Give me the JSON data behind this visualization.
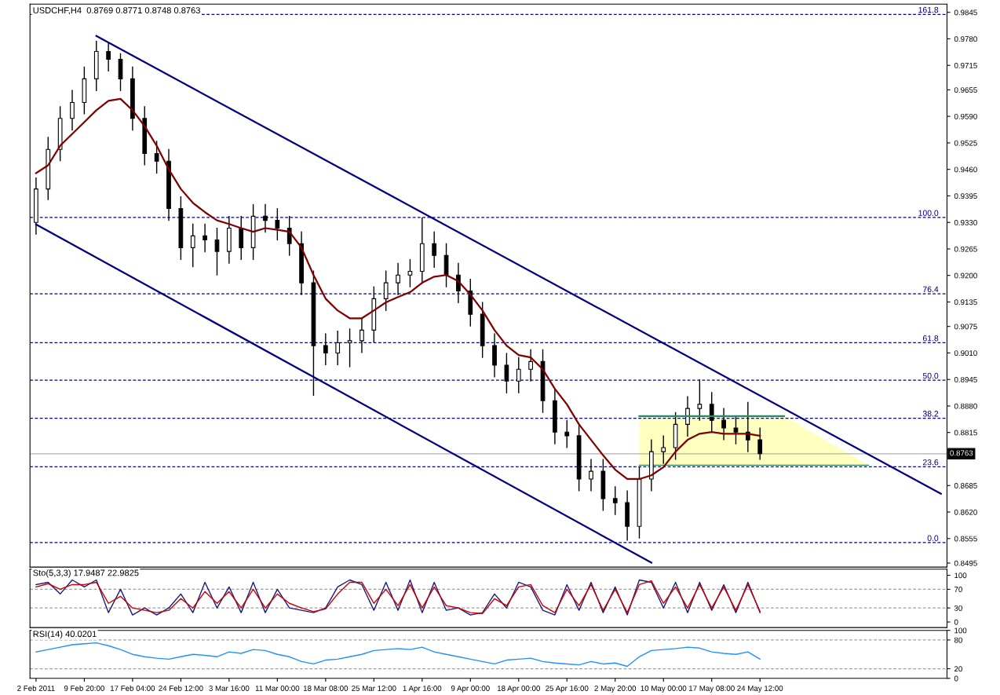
{
  "chart_data": [
    {
      "type": "candlestick",
      "title": "USDCHF,H4  0.8769 0.8771 0.8748 0.8763",
      "color": "#000000",
      "tick_labels": "y",
      "categories": [
        null,
        null,
        null,
        null,
        null,
        null,
        null,
        null,
        null,
        null,
        null,
        null,
        null,
        null,
        null,
        null,
        null,
        null,
        null,
        null,
        null,
        null,
        null,
        null,
        null,
        null,
        null,
        null,
        null,
        null,
        null,
        null,
        null,
        null,
        null,
        null,
        null,
        null,
        null,
        null,
        null,
        null,
        null,
        null,
        null,
        null,
        null,
        null,
        null,
        null,
        null,
        null,
        null,
        null,
        null,
        null,
        null,
        null,
        null,
        null,
        null,
        null,
        null,
        null,
        null,
        null,
        null,
        null,
        null,
        null,
        null,
        null,
        null,
        null,
        null,
        null
      ],
      "ohlc": [
        [
          0.933,
          0.944,
          0.93,
          0.9412
        ],
        [
          0.9412,
          0.954,
          0.9385,
          0.9509
        ],
        [
          0.9509,
          0.9615,
          0.948,
          0.9585
        ],
        [
          0.9585,
          0.9655,
          0.9555,
          0.9624
        ],
        [
          0.9624,
          0.9712,
          0.9595,
          0.9682
        ],
        [
          0.9682,
          0.9775,
          0.9652,
          0.9749
        ],
        [
          0.9749,
          0.977,
          0.97,
          0.973
        ],
        [
          0.973,
          0.9745,
          0.9652,
          0.9682
        ],
        [
          0.9682,
          0.9712,
          0.9555,
          0.9585
        ],
        [
          0.9585,
          0.9615,
          0.947,
          0.9499
        ],
        [
          0.9499,
          0.953,
          0.945,
          0.948
        ],
        [
          0.948,
          0.951,
          0.9334,
          0.9364
        ],
        [
          0.9364,
          0.9394,
          0.9238,
          0.9268
        ],
        [
          0.9268,
          0.9327,
          0.922,
          0.9297
        ],
        [
          0.9297,
          0.9327,
          0.9257,
          0.9287
        ],
        [
          0.9287,
          0.9317,
          0.92,
          0.9259
        ],
        [
          0.9259,
          0.9346,
          0.9229,
          0.9316
        ],
        [
          0.9316,
          0.9346,
          0.9238,
          0.9268
        ],
        [
          0.9268,
          0.9375,
          0.9238,
          0.9345
        ],
        [
          0.9345,
          0.9375,
          0.9305,
          0.9335
        ],
        [
          0.9335,
          0.9365,
          0.9286,
          0.9316
        ],
        [
          0.9316,
          0.9346,
          0.9248,
          0.9278
        ],
        [
          0.9278,
          0.9308,
          0.9152,
          0.9182
        ],
        [
          0.9182,
          0.9212,
          0.8905,
          0.9028
        ],
        [
          0.9028,
          0.9058,
          0.898,
          0.901
        ],
        [
          0.901,
          0.9065,
          0.898,
          0.9035
        ],
        [
          0.9035,
          0.907,
          0.8975,
          0.904
        ],
        [
          0.904,
          0.9096,
          0.901,
          0.9066
        ],
        [
          0.9066,
          0.9173,
          0.9036,
          0.9143
        ],
        [
          0.9143,
          0.9212,
          0.9113,
          0.9182
        ],
        [
          0.9182,
          0.9231,
          0.9152,
          0.9201
        ],
        [
          0.9201,
          0.924,
          0.9171,
          0.921
        ],
        [
          0.921,
          0.9342,
          0.918,
          0.9278
        ],
        [
          0.9278,
          0.9308,
          0.9219,
          0.9249
        ],
        [
          0.9249,
          0.9279,
          0.9171,
          0.9201
        ],
        [
          0.9201,
          0.9231,
          0.9132,
          0.9162
        ],
        [
          0.9162,
          0.9192,
          0.9075,
          0.9105
        ],
        [
          0.9105,
          0.9135,
          0.8998,
          0.9028
        ],
        [
          0.9028,
          0.9058,
          0.895,
          0.898
        ],
        [
          0.898,
          0.901,
          0.8911,
          0.8941
        ],
        [
          0.8941,
          0.9,
          0.8911,
          0.897
        ],
        [
          0.897,
          0.9019,
          0.894,
          0.8989
        ],
        [
          0.8989,
          0.9019,
          0.8863,
          0.8893
        ],
        [
          0.8893,
          0.8923,
          0.8786,
          0.8816
        ],
        [
          0.8816,
          0.8846,
          0.8777,
          0.8807
        ],
        [
          0.8807,
          0.8837,
          0.8671,
          0.8701
        ],
        [
          0.8701,
          0.875,
          0.8671,
          0.872
        ],
        [
          0.872,
          0.875,
          0.8623,
          0.8653
        ],
        [
          0.8653,
          0.8683,
          0.8613,
          0.8643
        ],
        [
          0.8643,
          0.8673,
          0.855,
          0.8585
        ],
        [
          0.8585,
          0.8731,
          0.8555,
          0.8701
        ],
        [
          0.8701,
          0.8798,
          0.8671,
          0.8768
        ],
        [
          0.8768,
          0.8808,
          0.8738,
          0.8778
        ],
        [
          0.8778,
          0.8865,
          0.8748,
          0.8835
        ],
        [
          0.8835,
          0.8904,
          0.8805,
          0.8874
        ],
        [
          0.8874,
          0.8945,
          0.8844,
          0.8884
        ],
        [
          0.8884,
          0.8914,
          0.8815,
          0.8845
        ],
        [
          0.8845,
          0.8875,
          0.8796,
          0.8826
        ],
        [
          0.8826,
          0.8856,
          0.8786,
          0.8816
        ],
        [
          0.8816,
          0.889,
          0.8767,
          0.8797
        ],
        [
          0.8797,
          0.8827,
          0.8748,
          0.8763
        ],
        null,
        null,
        null,
        null,
        null,
        null,
        null,
        null,
        null,
        null,
        null,
        null,
        null,
        null,
        null
      ],
      "series": [
        {
          "type": "line",
          "color": "#2e8b57",
          "values": [
            null,
            null,
            null,
            null,
            null,
            null,
            null,
            null,
            null,
            null,
            null,
            null,
            null,
            null,
            null,
            null,
            null,
            null,
            null,
            null,
            null,
            null,
            null,
            null,
            null,
            null,
            null,
            null,
            null,
            null,
            null,
            null,
            null,
            null,
            null,
            null,
            null,
            null,
            null,
            null,
            null,
            null,
            null,
            null,
            null,
            null,
            null,
            null,
            null,
            null,
            0.8735,
            null,
            null,
            null,
            null,
            null,
            null,
            null,
            null,
            null,
            null,
            null,
            0.8735,
            null,
            null,
            null,
            null,
            null,
            null,
            0.8735,
            null,
            null,
            null,
            null,
            null,
            null
          ],
          "upper": [
            null,
            null,
            null,
            null,
            null,
            null,
            null,
            null,
            null,
            null,
            null,
            null,
            null,
            null,
            null,
            null,
            null,
            null,
            null,
            null,
            null,
            null,
            null,
            null,
            null,
            null,
            null,
            null,
            null,
            null,
            null,
            null,
            null,
            null,
            null,
            null,
            null,
            null,
            null,
            null,
            null,
            null,
            null,
            null,
            null,
            null,
            null,
            null,
            null,
            null,
            0.8855,
            null,
            null,
            null,
            null,
            null,
            null,
            null,
            null,
            null,
            null,
            null,
            0.8855,
            null,
            null,
            null,
            null,
            null,
            null,
            0.8735,
            null,
            null,
            null,
            null,
            null,
            null
          ],
          "lower": [
            null,
            null,
            null,
            null,
            null,
            null,
            null,
            null,
            null,
            null,
            null,
            null,
            null,
            null,
            null,
            null,
            null,
            null,
            null,
            null,
            null,
            null,
            null,
            null,
            null,
            null,
            null,
            null,
            null,
            null,
            null,
            null,
            null,
            null,
            null,
            null,
            null,
            null,
            null,
            null,
            null,
            null,
            null,
            null,
            null,
            null,
            null,
            null,
            null,
            null,
            0.8735,
            null,
            null,
            null,
            null,
            null,
            null,
            null,
            null,
            null,
            null,
            null,
            0.8735,
            null,
            null,
            null,
            null,
            null,
            null,
            0.8735,
            null,
            null,
            null,
            null,
            null,
            null
          ]
        },
        {
          "type": "line",
          "color": "#2e8b57",
          "values": [
            null,
            null,
            null,
            null,
            null,
            null,
            null,
            null,
            null,
            null,
            null,
            null,
            null,
            null,
            null,
            null,
            null,
            null,
            null,
            null,
            null,
            null,
            null,
            null,
            null,
            null,
            null,
            null,
            null,
            null,
            null,
            null,
            null,
            null,
            null,
            null,
            null,
            null,
            null,
            null,
            null,
            null,
            null,
            null,
            null,
            null,
            null,
            null,
            null,
            null,
            0.8855,
            null,
            null,
            null,
            null,
            null,
            null,
            null,
            null,
            null,
            null,
            null,
            0.8855,
            null,
            null,
            null,
            null,
            null,
            null,
            null,
            null,
            null,
            null,
            null,
            null,
            null
          ]
        },
        {
          "type": "line",
          "color": "#800000",
          "values": [
            0.9451,
            0.947,
            0.9518,
            0.9547,
            0.9576,
            0.9605,
            0.9628,
            0.9633,
            0.9605,
            0.9566,
            0.9518,
            0.946,
            0.9412,
            0.9378,
            0.9355,
            0.9335,
            0.9326,
            0.9316,
            0.9307,
            0.9316,
            0.9312,
            0.9307,
            0.9268,
            0.9201,
            0.9143,
            0.9114,
            0.9095,
            0.9095,
            0.9114,
            0.9134,
            0.9147,
            0.9159,
            0.9182,
            0.9197,
            0.9201,
            0.9186,
            0.9153,
            0.9114,
            0.9066,
            0.9028,
            0.9005,
            0.8999,
            0.897,
            0.8922,
            0.8884,
            0.8835,
            0.8797,
            0.8759,
            0.8724,
            0.8701,
            0.8701,
            0.871,
            0.873,
            0.8768,
            0.8797,
            0.8812,
            0.8816,
            0.8812,
            0.8812,
            0.8812,
            0.8807,
            null,
            null,
            null,
            null,
            null,
            null,
            null,
            null,
            null,
            null,
            null,
            null,
            null,
            null,
            null
          ]
        },
        {
          "type": "line",
          "color": "#000080",
          "values": [
            null,
            null,
            null,
            null,
            null,
            0.9787,
            null,
            null,
            null,
            null,
            null,
            null,
            null,
            null,
            null,
            null,
            null,
            null,
            null,
            null,
            null,
            null,
            null,
            null,
            null,
            null,
            null,
            null,
            null,
            null,
            null,
            null,
            null,
            null,
            null,
            null,
            null,
            null,
            null,
            null,
            null,
            null,
            null,
            null,
            null,
            null,
            null,
            null,
            null,
            null,
            null,
            null,
            null,
            null,
            null,
            null,
            null,
            null,
            null,
            null,
            null,
            null,
            null,
            null,
            null,
            null,
            null,
            null,
            null,
            null,
            null,
            null,
            null,
            null,
            null,
            0.8665
          ]
        },
        {
          "type": "line",
          "color": "#000080",
          "values": [
            0.9325,
            null,
            null,
            null,
            null,
            null,
            null,
            null,
            null,
            null,
            null,
            null,
            null,
            null,
            null,
            null,
            null,
            null,
            null,
            null,
            null,
            null,
            null,
            null,
            null,
            null,
            null,
            null,
            null,
            null,
            null,
            null,
            null,
            null,
            null,
            null,
            null,
            null,
            null,
            null,
            null,
            null,
            null,
            null,
            null,
            null,
            null,
            null,
            null,
            null,
            null,
            0.8496,
            null,
            null,
            null,
            null,
            null,
            null,
            null,
            null,
            null,
            null,
            null,
            null,
            null,
            null,
            null,
            null,
            null,
            null,
            null,
            null,
            null,
            null,
            null,
            null
          ]
        }
      ],
      "annotations": [
        {
          "text": "161.8",
          "y": 0.984
        },
        {
          "text": "100.0",
          "y": 0.9342
        },
        {
          "text": "76.4",
          "y": 0.9155
        },
        {
          "text": "61.8",
          "y": 0.9035
        },
        {
          "text": "50.0",
          "y": 0.8943
        },
        {
          "text": "38.2",
          "y": 0.885
        },
        {
          "text": "23.6",
          "y": 0.8731
        },
        {
          "text": "0.0",
          "y": 0.8545
        }
      ],
      "ref_lines": [
        {
          "axis": "y",
          "value": 0.984,
          "label": null,
          "color": "#000080",
          "line_style": "dashed"
        },
        {
          "axis": "y",
          "value": 0.9342,
          "label": null,
          "color": "#000080",
          "line_style": "dashed"
        },
        {
          "axis": "y",
          "value": 0.9155,
          "label": null,
          "color": "#000080",
          "line_style": "dashed"
        },
        {
          "axis": "y",
          "value": 0.9035,
          "label": null,
          "color": "#000080",
          "line_style": "dashed"
        },
        {
          "axis": "y",
          "value": 0.8943,
          "label": null,
          "color": "#000080",
          "line_style": "dashed"
        },
        {
          "axis": "y",
          "value": 0.885,
          "label": null,
          "color": "#000080",
          "line_style": "dashed"
        },
        {
          "axis": "y",
          "value": 0.8731,
          "label": null,
          "color": "#000080",
          "line_style": "dashed"
        },
        {
          "axis": "y",
          "value": 0.8545,
          "label": null,
          "color": "#000080",
          "line_style": "dashed"
        },
        {
          "axis": "y",
          "value": 0.8763,
          "label": "0.8763",
          "color": "#b0b0b0",
          "line_style": "solid"
        }
      ],
      "ylim": [
        0.8485,
        0.9865
      ],
      "yticks": [
        {
          "value": 0.9845,
          "label": "0.9845"
        },
        {
          "value": 0.978,
          "label": "0.9780"
        },
        {
          "value": 0.9715,
          "label": "0.9715"
        },
        {
          "value": 0.9655,
          "label": "0.9655"
        },
        {
          "value": 0.959,
          "label": "0.9590"
        },
        {
          "value": 0.9525,
          "label": "0.9525"
        },
        {
          "value": 0.946,
          "label": "0.9460"
        },
        {
          "value": 0.9395,
          "label": "0.9395"
        },
        {
          "value": 0.933,
          "label": "0.9330"
        },
        {
          "value": 0.9265,
          "label": "0.9265"
        },
        {
          "value": 0.92,
          "label": "0.9200"
        },
        {
          "value": 0.9135,
          "label": "0.9135"
        },
        {
          "value": 0.9075,
          "label": "0.9075"
        },
        {
          "value": 0.901,
          "label": "0.9010"
        },
        {
          "value": 0.8945,
          "label": "0.8945"
        },
        {
          "value": 0.888,
          "label": "0.8880"
        },
        {
          "value": 0.8815,
          "label": "0.8815"
        },
        {
          "value": 0.8685,
          "label": "0.8685"
        },
        {
          "value": 0.862,
          "label": "0.8620"
        },
        {
          "value": 0.8555,
          "label": "0.8555"
        },
        {
          "value": 0.8495,
          "label": "0.8495"
        }
      ]
    },
    {
      "type": "line",
      "title": "Sto(5,3,3) 17.9487 22.9825",
      "tick_labels": "y",
      "categories": [
        null,
        null,
        null,
        null,
        null,
        null,
        null,
        null,
        null,
        null,
        null,
        null,
        null,
        null,
        null,
        null,
        null,
        null,
        null,
        null,
        null,
        null,
        null,
        null,
        null,
        null,
        null,
        null,
        null,
        null,
        null,
        null,
        null,
        null,
        null,
        null,
        null,
        null,
        null,
        null,
        null,
        null,
        null,
        null,
        null,
        null,
        null,
        null,
        null,
        null,
        null,
        null,
        null,
        null,
        null,
        null,
        null,
        null,
        null,
        null,
        null,
        null,
        null,
        null,
        null,
        null,
        null,
        null,
        null,
        null,
        null,
        null,
        null,
        null,
        null,
        null
      ],
      "series": [
        {
          "color": "#1a1a80",
          "values": [
            80,
            85,
            60,
            90,
            75,
            90,
            20,
            70,
            15,
            30,
            15,
            30,
            60,
            20,
            85,
            30,
            75,
            20,
            85,
            20,
            70,
            30,
            25,
            20,
            30,
            75,
            90,
            80,
            25,
            85,
            25,
            90,
            20,
            85,
            25,
            30,
            15,
            20,
            60,
            30,
            85,
            75,
            25,
            15,
            80,
            25,
            85,
            20,
            75,
            15,
            90,
            85,
            30,
            85,
            20,
            85,
            25,
            80,
            20,
            85,
            20,
            null,
            null,
            null,
            null,
            null,
            null,
            null,
            null,
            null,
            null,
            null,
            null,
            null,
            null,
            null
          ]
        },
        {
          "color": "#cc0000",
          "values": [
            75,
            82,
            70,
            80,
            80,
            85,
            40,
            55,
            30,
            25,
            20,
            25,
            50,
            30,
            65,
            40,
            65,
            30,
            70,
            30,
            60,
            40,
            30,
            22,
            28,
            60,
            85,
            85,
            40,
            70,
            35,
            80,
            30,
            75,
            35,
            30,
            20,
            18,
            50,
            35,
            75,
            80,
            35,
            20,
            70,
            35,
            80,
            25,
            70,
            20,
            80,
            88,
            40,
            75,
            30,
            80,
            30,
            75,
            25,
            80,
            23,
            null,
            null,
            null,
            null,
            null,
            null,
            null,
            null,
            null,
            null,
            null,
            null,
            null,
            null,
            null
          ]
        }
      ],
      "ref_lines": [
        {
          "axis": "y",
          "value": 70,
          "label": null,
          "color": "#a0a0a0",
          "line_style": "dashed"
        },
        {
          "axis": "y",
          "value": 30,
          "label": null,
          "color": "#a0a0a0",
          "line_style": "dashed"
        }
      ],
      "ylim": [
        -12,
        113
      ],
      "yticks": [
        0,
        30,
        70,
        100
      ]
    },
    {
      "type": "line",
      "title": "RSI(14) 40.0201",
      "categories": [
        "2 Feb 2011",
        null,
        null,
        null,
        "9 Feb 20:00",
        null,
        null,
        null,
        "17 Feb 04:00",
        null,
        null,
        null,
        "24 Feb 12:00",
        null,
        null,
        null,
        "3 Mar 16:00",
        null,
        null,
        null,
        "11 Mar 00:00",
        null,
        null,
        null,
        "18 Mar 08:00",
        null,
        null,
        null,
        "25 Mar 12:00",
        null,
        null,
        null,
        "1 Apr 16:00",
        null,
        null,
        null,
        "9 Apr 00:00",
        null,
        null,
        null,
        "18 Apr 00:00",
        null,
        null,
        null,
        "25 Apr 16:00",
        null,
        null,
        null,
        "2 May 20:00",
        null,
        null,
        null,
        "10 May 00:00",
        null,
        null,
        null,
        "17 May 08:00",
        null,
        null,
        null,
        "24 May 12:00",
        null,
        null,
        null,
        null,
        null,
        null,
        null,
        null,
        null,
        null,
        null,
        null,
        null,
        null,
        null
      ],
      "series": [
        {
          "color": "#1e90ff",
          "values": [
            55,
            60,
            65,
            70,
            72,
            74,
            68,
            60,
            50,
            45,
            42,
            40,
            45,
            50,
            48,
            45,
            55,
            52,
            60,
            58,
            50,
            45,
            35,
            30,
            38,
            40,
            45,
            50,
            58,
            60,
            62,
            60,
            65,
            55,
            50,
            45,
            40,
            35,
            30,
            38,
            40,
            42,
            35,
            32,
            30,
            28,
            35,
            30,
            32,
            25,
            45,
            58,
            60,
            62,
            65,
            63,
            55,
            52,
            50,
            55,
            40,
            null,
            null,
            null,
            null,
            null,
            null,
            null,
            null,
            null,
            null,
            null,
            null,
            null,
            null,
            null
          ]
        }
      ],
      "ref_lines": [
        {
          "axis": "y",
          "value": 80,
          "label": null,
          "color": "#a0a0a0",
          "line_style": "dashed"
        },
        {
          "axis": "y",
          "value": 20,
          "label": null,
          "color": "#a0a0a0",
          "line_style": "dashed"
        }
      ],
      "ylim": [
        0,
        100
      ],
      "yticks": [
        0,
        20,
        80,
        100
      ]
    }
  ]
}
